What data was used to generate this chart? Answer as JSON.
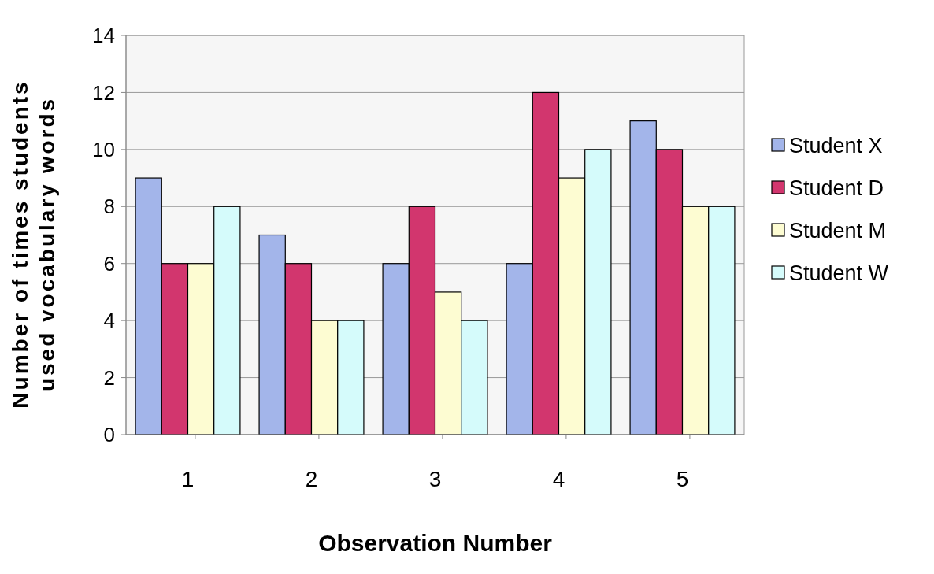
{
  "chart_data": {
    "type": "bar",
    "xlabel": "Observation Number",
    "ylabel": "Number of times students used vocabulary words",
    "categories": [
      "1",
      "2",
      "3",
      "4",
      "5"
    ],
    "series": [
      {
        "name": "Student X",
        "color": "#a3b5ea",
        "values": [
          9,
          7,
          6,
          6,
          11
        ]
      },
      {
        "name": "Student D",
        "color": "#d2366e",
        "values": [
          6,
          6,
          8,
          12,
          10
        ]
      },
      {
        "name": "Student M",
        "color": "#fdfcd2",
        "values": [
          6,
          4,
          5,
          9,
          8
        ]
      },
      {
        "name": "Student W",
        "color": "#d5fbfb",
        "values": [
          8,
          4,
          4,
          10,
          8
        ]
      }
    ],
    "ylim": [
      0,
      14
    ],
    "yticks": [
      0,
      2,
      4,
      6,
      8,
      10,
      12,
      14
    ],
    "grid": "y",
    "legend": "right"
  }
}
